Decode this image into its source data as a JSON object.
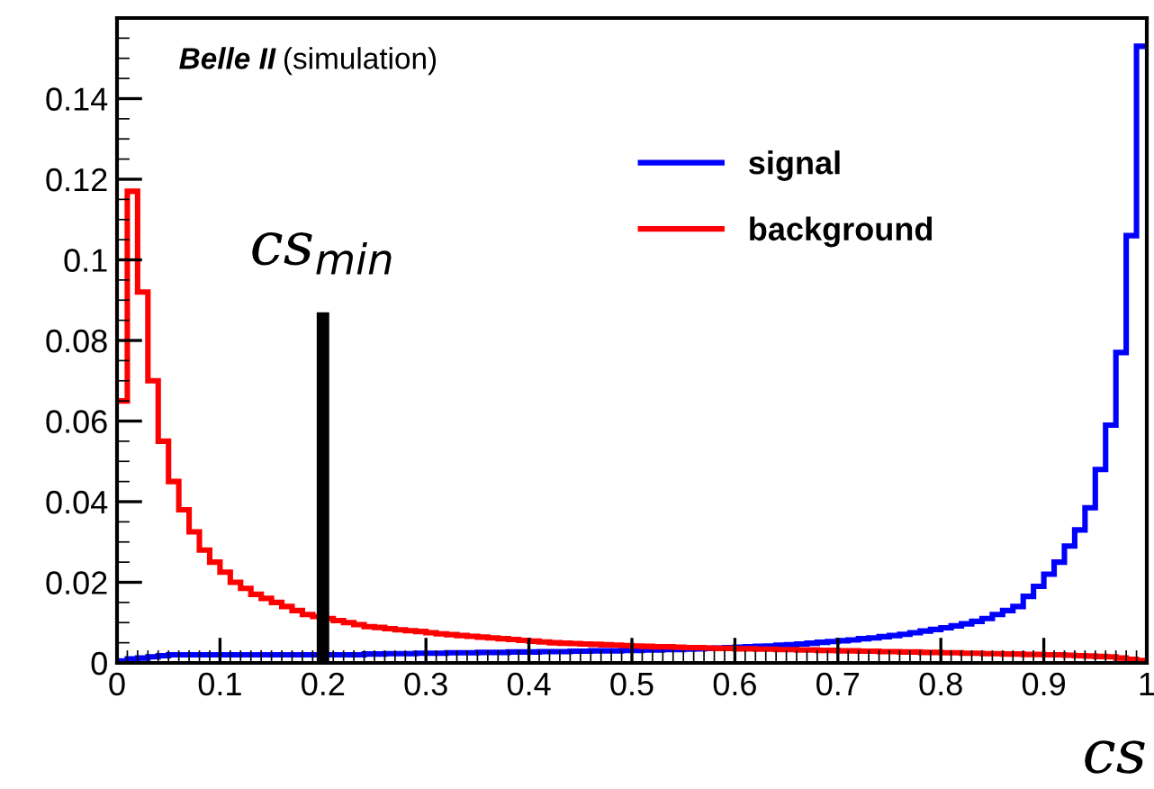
{
  "chart_data": {
    "type": "histogram",
    "xlabel": "cs",
    "bins": [
      0,
      0.01,
      0.02,
      0.03,
      0.04,
      0.05,
      0.06,
      0.07,
      0.08,
      0.09,
      0.1,
      0.11,
      0.12,
      0.13,
      0.14,
      0.15,
      0.16,
      0.17,
      0.18,
      0.19,
      0.2,
      0.21,
      0.22,
      0.23,
      0.24,
      0.25,
      0.26,
      0.27,
      0.28,
      0.29,
      0.3,
      0.31,
      0.32,
      0.33,
      0.34,
      0.35,
      0.36,
      0.37,
      0.38,
      0.39,
      0.4,
      0.41,
      0.42,
      0.43,
      0.44,
      0.45,
      0.46,
      0.47,
      0.48,
      0.49,
      0.5,
      0.51,
      0.52,
      0.53,
      0.54,
      0.55,
      0.56,
      0.57,
      0.58,
      0.59,
      0.6,
      0.61,
      0.62,
      0.63,
      0.64,
      0.65,
      0.66,
      0.67,
      0.68,
      0.69,
      0.7,
      0.71,
      0.72,
      0.73,
      0.74,
      0.75,
      0.76,
      0.77,
      0.78,
      0.79,
      0.8,
      0.81,
      0.82,
      0.83,
      0.84,
      0.85,
      0.86,
      0.87,
      0.88,
      0.89,
      0.9,
      0.91,
      0.92,
      0.93,
      0.94,
      0.95,
      0.96,
      0.97,
      0.98,
      0.99,
      1
    ],
    "series": [
      {
        "name": "signal",
        "color": "#0000ff",
        "values": [
          0.0005,
          0.001,
          0.0012,
          0.0015,
          0.0018,
          0.002,
          0.002,
          0.002,
          0.002,
          0.002,
          0.002,
          0.002,
          0.002,
          0.002,
          0.002,
          0.002,
          0.002,
          0.002,
          0.002,
          0.002,
          0.002,
          0.002,
          0.002,
          0.002,
          0.0022,
          0.0022,
          0.0023,
          0.0023,
          0.0023,
          0.0024,
          0.0024,
          0.0024,
          0.0025,
          0.0025,
          0.0025,
          0.0026,
          0.0026,
          0.0026,
          0.0027,
          0.0027,
          0.0027,
          0.0028,
          0.0028,
          0.0028,
          0.0029,
          0.0029,
          0.003,
          0.003,
          0.003,
          0.0031,
          0.0031,
          0.0032,
          0.0032,
          0.0033,
          0.0033,
          0.0034,
          0.0035,
          0.0036,
          0.0037,
          0.0038,
          0.0039,
          0.004,
          0.0041,
          0.0042,
          0.0044,
          0.0045,
          0.0047,
          0.0049,
          0.0051,
          0.0053,
          0.0055,
          0.0057,
          0.006,
          0.0062,
          0.0065,
          0.0068,
          0.0071,
          0.0075,
          0.0079,
          0.0083,
          0.0087,
          0.0092,
          0.0097,
          0.0103,
          0.011,
          0.012,
          0.013,
          0.014,
          0.0165,
          0.019,
          0.022,
          0.025,
          0.029,
          0.033,
          0.0385,
          0.048,
          0.059,
          0.077,
          0.106,
          0.153
        ]
      },
      {
        "name": "background",
        "color": "#ff0000",
        "values": [
          0.065,
          0.117,
          0.092,
          0.07,
          0.055,
          0.045,
          0.038,
          0.0325,
          0.028,
          0.025,
          0.0225,
          0.02,
          0.0185,
          0.017,
          0.016,
          0.015,
          0.014,
          0.013,
          0.012,
          0.0115,
          0.011,
          0.0105,
          0.01,
          0.0095,
          0.009,
          0.0088,
          0.0085,
          0.0082,
          0.008,
          0.0078,
          0.0075,
          0.0072,
          0.007,
          0.0068,
          0.0066,
          0.0064,
          0.0062,
          0.006,
          0.0058,
          0.0056,
          0.0054,
          0.0052,
          0.005,
          0.0049,
          0.0048,
          0.0047,
          0.0046,
          0.0045,
          0.0044,
          0.0043,
          0.0042,
          0.0041,
          0.004,
          0.004,
          0.0039,
          0.0038,
          0.0038,
          0.0037,
          0.0036,
          0.0036,
          0.0035,
          0.0035,
          0.0034,
          0.0034,
          0.0033,
          0.0033,
          0.0032,
          0.0032,
          0.0031,
          0.0031,
          0.003,
          0.003,
          0.0029,
          0.0029,
          0.0028,
          0.0028,
          0.0027,
          0.0027,
          0.0026,
          0.0026,
          0.0025,
          0.0025,
          0.0024,
          0.0024,
          0.0023,
          0.0023,
          0.0022,
          0.0022,
          0.0021,
          0.0021,
          0.002,
          0.002,
          0.0019,
          0.0018,
          0.0017,
          0.0016,
          0.0015,
          0.0012,
          0.0009,
          0.0006
        ]
      },
      {
        "type": "line",
        "color": "#000000",
        "x": [
          0.2,
          0.2
        ],
        "values": [
          0,
          0.087
        ]
      }
    ],
    "annotations": [
      "Belle II",
      "(simulation)",
      {
        "text": "cs$_{min}$",
        "x": 0.2,
        "y": 0.087
      }
    ],
    "xlim": [
      0,
      1
    ],
    "xticks": [
      0,
      0.1,
      0.2,
      0.3,
      0.4,
      0.5,
      0.6,
      0.7,
      0.8,
      0.9,
      {
        "value": 1,
        "label": "1"
      }
    ],
    "ylim": [
      0,
      0.16
    ],
    "yticks": [
      0,
      0.02,
      0.04,
      0.06,
      0.08,
      0.1,
      0.12,
      0.14
    ],
    "grid": false,
    "legend": "top"
  }
}
